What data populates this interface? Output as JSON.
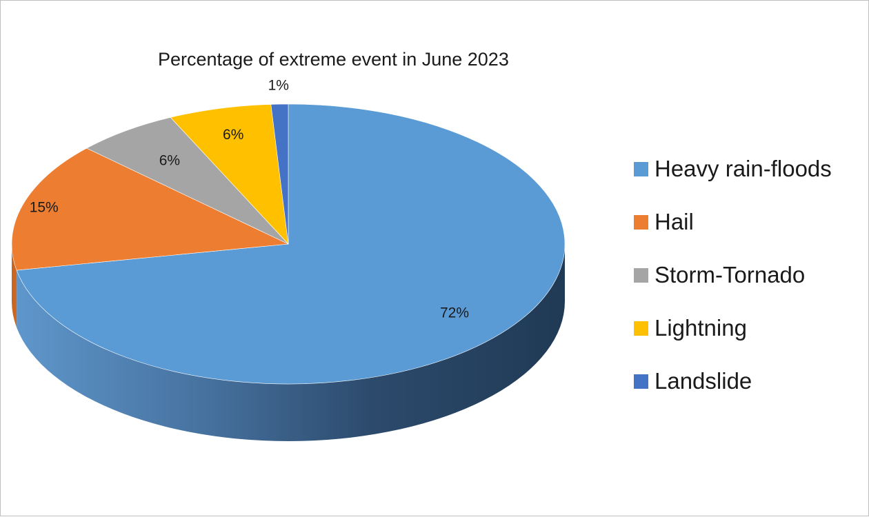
{
  "chart_data": {
    "type": "pie",
    "title": "Percentage of extreme event in June 2023",
    "style": "3d",
    "legend_position": "right",
    "categories": [
      "Heavy rain-floods",
      "Hail",
      "Storm-Tornado",
      "Lightning",
      "Landslide"
    ],
    "values": [
      72,
      15,
      6,
      6,
      1
    ],
    "labels": [
      "72%",
      "15%",
      "6%",
      "6%",
      "1%"
    ],
    "colors": [
      "#5B9BD5",
      "#ED7D31",
      "#A5A5A5",
      "#FFC000",
      "#4472C4"
    ]
  }
}
